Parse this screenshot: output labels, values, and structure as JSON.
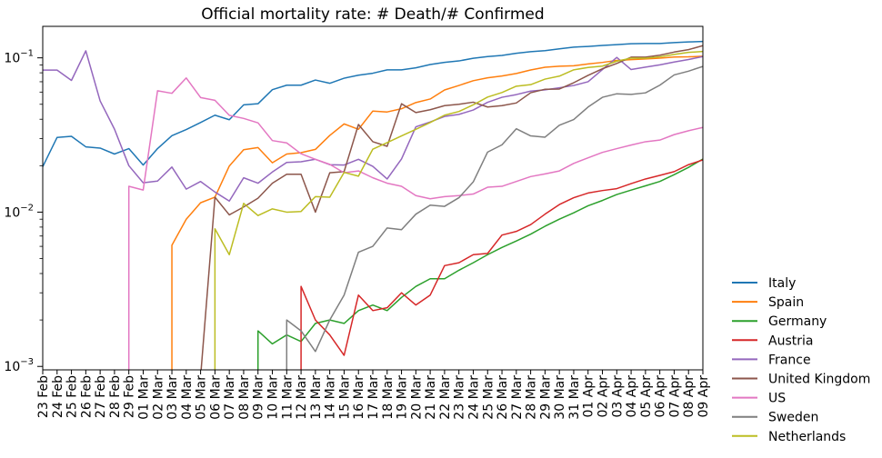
{
  "chart_data": {
    "type": "line",
    "title": "Official mortality rate: # Death/# Confirmed",
    "xlabel": "",
    "ylabel": "",
    "yscale": "log",
    "ylim": [
      0.00095,
      0.16
    ],
    "yticks": [
      {
        "value": 0.1,
        "base": "10",
        "exp": "−1"
      },
      {
        "value": 0.01,
        "base": "10",
        "exp": "−2"
      },
      {
        "value": 0.001,
        "base": "10",
        "exp": "−3"
      }
    ],
    "legend_position": "outside-right-bottom",
    "grid": false,
    "x": [
      "23 Feb",
      "24 Feb",
      "25 Feb",
      "26 Feb",
      "27 Feb",
      "28 Feb",
      "29 Feb",
      "01 Mar",
      "02 Mar",
      "03 Mar",
      "04 Mar",
      "05 Mar",
      "06 Mar",
      "07 Mar",
      "08 Mar",
      "09 Mar",
      "10 Mar",
      "11 Mar",
      "12 Mar",
      "13 Mar",
      "14 Mar",
      "15 Mar",
      "16 Mar",
      "17 Mar",
      "18 Mar",
      "19 Mar",
      "20 Mar",
      "21 Mar",
      "22 Mar",
      "23 Mar",
      "24 Mar",
      "25 Mar",
      "26 Mar",
      "27 Mar",
      "28 Mar",
      "29 Mar",
      "30 Mar",
      "31 Mar",
      "01 Apr",
      "02 Apr",
      "03 Apr",
      "04 Apr",
      "05 Apr",
      "06 Apr",
      "07 Apr",
      "08 Apr",
      "09 Apr"
    ],
    "series": [
      {
        "name": "Italy",
        "color": "#1f77b4",
        "values": [
          0.0197,
          0.0305,
          0.031,
          0.0265,
          0.026,
          0.0238,
          0.0258,
          0.0202,
          0.0258,
          0.0313,
          0.0343,
          0.0381,
          0.0425,
          0.0397,
          0.0496,
          0.0504,
          0.0622,
          0.0665,
          0.0665,
          0.0718,
          0.0684,
          0.0738,
          0.0772,
          0.0795,
          0.0836,
          0.0836,
          0.0862,
          0.0905,
          0.0935,
          0.0955,
          0.0994,
          0.1019,
          0.1036,
          0.1071,
          0.1096,
          0.1113,
          0.1143,
          0.1173,
          0.1186,
          0.1203,
          0.1218,
          0.1234,
          0.1239,
          0.1239,
          0.1256,
          0.1268,
          0.1276
        ]
      },
      {
        "name": "Spain",
        "color": "#ff7f0e",
        "values": [
          null,
          null,
          null,
          null,
          null,
          null,
          null,
          null,
          null,
          0.0061,
          0.009,
          0.0115,
          0.0125,
          0.0199,
          0.0254,
          0.0262,
          0.0209,
          0.0238,
          0.0243,
          0.0255,
          0.0314,
          0.0373,
          0.0344,
          0.0452,
          0.0446,
          0.0468,
          0.0513,
          0.0541,
          0.0619,
          0.0662,
          0.0711,
          0.0742,
          0.0763,
          0.0792,
          0.0834,
          0.0869,
          0.0882,
          0.0889,
          0.0913,
          0.0934,
          0.0963,
          0.0973,
          0.0983,
          0.0995,
          0.1012,
          0.1015,
          0.1024
        ]
      },
      {
        "name": "Germany",
        "color": "#2ca02c",
        "values": [
          null,
          null,
          null,
          null,
          null,
          null,
          null,
          null,
          null,
          null,
          null,
          null,
          null,
          null,
          null,
          0.0017,
          0.0014,
          0.0016,
          0.00145,
          0.0019,
          0.002,
          0.0019,
          0.0023,
          0.0025,
          0.0023,
          0.0028,
          0.0033,
          0.0037,
          0.0037,
          0.0042,
          0.0047,
          0.0053,
          0.0059,
          0.0065,
          0.0072,
          0.0081,
          0.009,
          0.0099,
          0.011,
          0.0119,
          0.013,
          0.0139,
          0.0148,
          0.0158,
          0.0175,
          0.0195,
          0.0221
        ]
      },
      {
        "name": "Austria",
        "color": "#d62728",
        "values": [
          null,
          null,
          null,
          null,
          null,
          null,
          null,
          null,
          null,
          null,
          null,
          null,
          null,
          null,
          null,
          null,
          null,
          null,
          0.0033,
          0.002,
          0.0016,
          0.00118,
          0.0029,
          0.0023,
          0.0024,
          0.003,
          0.0025,
          0.0029,
          0.0045,
          0.0047,
          0.0053,
          0.0054,
          0.0071,
          0.0075,
          0.0083,
          0.0097,
          0.0112,
          0.0124,
          0.0133,
          0.0138,
          0.0142,
          0.0153,
          0.0164,
          0.0173,
          0.0183,
          0.0203,
          0.0218
        ]
      },
      {
        "name": "France",
        "color": "#9467bd",
        "values": [
          0.0833,
          0.0833,
          0.0714,
          0.1111,
          0.0526,
          0.0345,
          0.02,
          0.0155,
          0.0159,
          0.0196,
          0.0141,
          0.0158,
          0.0135,
          0.0118,
          0.0167,
          0.0154,
          0.0182,
          0.021,
          0.0212,
          0.022,
          0.0203,
          0.0202,
          0.022,
          0.0198,
          0.0164,
          0.0221,
          0.0357,
          0.0384,
          0.0417,
          0.043,
          0.0459,
          0.0515,
          0.0555,
          0.0578,
          0.0609,
          0.062,
          0.064,
          0.0662,
          0.07,
          0.084,
          0.1007,
          0.084,
          0.087,
          0.09,
          0.094,
          0.0975,
          0.102
        ]
      },
      {
        "name": "United Kingdom",
        "color": "#8c564b",
        "values": [
          null,
          null,
          null,
          null,
          null,
          null,
          null,
          null,
          null,
          null,
          null,
          0.00086,
          0.0125,
          0.0096,
          0.0108,
          0.0123,
          0.0154,
          0.0176,
          0.0176,
          0.01,
          0.018,
          0.0183,
          0.037,
          0.0286,
          0.0267,
          0.0504,
          0.0442,
          0.0461,
          0.049,
          0.05,
          0.0516,
          0.048,
          0.049,
          0.051,
          0.0594,
          0.0626,
          0.0628,
          0.069,
          0.077,
          0.085,
          0.092,
          0.101,
          0.101,
          0.104,
          0.109,
          0.113,
          0.12
        ]
      },
      {
        "name": "US",
        "color": "#e377c2",
        "values": [
          null,
          null,
          null,
          null,
          null,
          null,
          0.0147,
          0.0139,
          0.0612,
          0.0589,
          0.0741,
          0.0553,
          0.0531,
          0.0424,
          0.0405,
          0.0379,
          0.0291,
          0.0281,
          0.0239,
          0.022,
          0.0204,
          0.018,
          0.0185,
          0.0167,
          0.0154,
          0.0147,
          0.0128,
          0.0122,
          0.0126,
          0.0128,
          0.0131,
          0.0145,
          0.0147,
          0.0158,
          0.017,
          0.0177,
          0.0185,
          0.0207,
          0.0225,
          0.0244,
          0.0258,
          0.0272,
          0.0286,
          0.0293,
          0.0318,
          0.0337,
          0.0354
        ]
      },
      {
        "name": "Sweden",
        "color": "#7f7f7f",
        "values": [
          null,
          null,
          null,
          null,
          null,
          null,
          null,
          null,
          null,
          null,
          null,
          null,
          null,
          null,
          null,
          null,
          null,
          0.002,
          0.0017,
          0.00125,
          0.002,
          0.0029,
          0.0055,
          0.006,
          0.0079,
          0.0077,
          0.0097,
          0.0111,
          0.0109,
          0.0124,
          0.0157,
          0.0245,
          0.0273,
          0.0347,
          0.0312,
          0.0306,
          0.0366,
          0.0398,
          0.048,
          0.0555,
          0.0585,
          0.058,
          0.0593,
          0.0665,
          0.0775,
          0.082,
          0.088
        ]
      },
      {
        "name": "Netherlands",
        "color": "#bcbd22",
        "values": [
          null,
          null,
          null,
          null,
          null,
          null,
          null,
          null,
          null,
          null,
          null,
          null,
          0.0078,
          0.0053,
          0.0114,
          0.0095,
          0.0105,
          0.01,
          0.0101,
          0.0126,
          0.0125,
          0.0181,
          0.0171,
          0.0256,
          0.0282,
          0.0312,
          0.0344,
          0.0381,
          0.0425,
          0.0449,
          0.0496,
          0.0557,
          0.0596,
          0.0655,
          0.067,
          0.0728,
          0.0761,
          0.0836,
          0.0866,
          0.0884,
          0.0951,
          0.0996,
          0.0996,
          0.1015,
          0.1053,
          0.1085,
          0.11
        ]
      }
    ]
  }
}
